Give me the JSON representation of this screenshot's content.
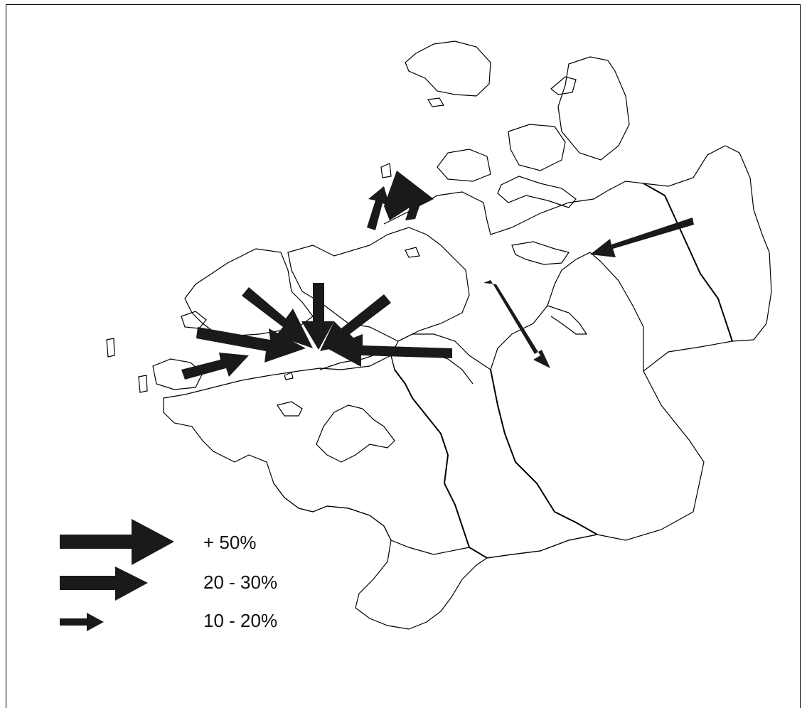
{
  "legend": {
    "items": [
      {
        "label": "+ 50%",
        "size_class": "large"
      },
      {
        "label": "20 - 30%",
        "size_class": "medium"
      },
      {
        "label": "10 - 20%",
        "size_class": "small"
      }
    ]
  },
  "colors": {
    "arrow": "#1a1a1a",
    "outline": "#000000",
    "background": "#ffffff"
  },
  "flows": [
    {
      "name": "flow-west-large",
      "size_class": "medium"
    },
    {
      "name": "flow-west-small",
      "size_class": "small"
    },
    {
      "name": "flow-northwest",
      "size_class": "medium"
    },
    {
      "name": "flow-north",
      "size_class": "medium"
    },
    {
      "name": "flow-northeast",
      "size_class": "medium"
    },
    {
      "name": "flow-east",
      "size_class": "medium"
    },
    {
      "name": "flow-northern-islands-a",
      "size_class": "large"
    },
    {
      "name": "flow-northern-islands-b",
      "size_class": "small"
    },
    {
      "name": "flow-southeast",
      "size_class": "small"
    },
    {
      "name": "flow-far-east",
      "size_class": "small"
    }
  ]
}
